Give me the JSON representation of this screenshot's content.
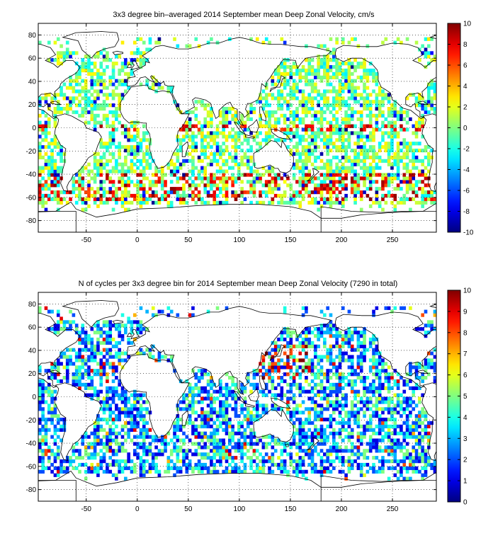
{
  "chart_data": [
    {
      "type": "heatmap",
      "title": "3x3 degree bin–averaged 2014 September mean Deep Zonal Velocity, cm/s",
      "xlabel": "",
      "ylabel": "",
      "xlim": [
        -97,
        293
      ],
      "ylim": [
        -90,
        90
      ],
      "x_ticks": [
        -50,
        0,
        50,
        100,
        150,
        200,
        250
      ],
      "y_ticks": [
        80,
        60,
        40,
        20,
        0,
        -20,
        -40,
        -60,
        -80
      ],
      "colorbar": {
        "min": -10,
        "max": 10,
        "ticks": [
          10,
          8,
          6,
          4,
          2,
          0,
          -2,
          -4,
          -6,
          -8,
          -10
        ]
      },
      "bin_size_deg": 3,
      "grid": true,
      "colormap": "jet"
    },
    {
      "type": "heatmap",
      "title": "N of cycles per 3x3 degree bin for 2014 September mean Deep Zonal Velocity (7290 in total)",
      "xlabel": "",
      "ylabel": "",
      "xlim": [
        -97,
        293
      ],
      "ylim": [
        -90,
        90
      ],
      "x_ticks": [
        -50,
        0,
        50,
        100,
        150,
        200,
        250
      ],
      "y_ticks": [
        80,
        60,
        40,
        20,
        0,
        -20,
        -40,
        -60,
        -80
      ],
      "colorbar": {
        "min": 0,
        "max": 10,
        "ticks": [
          10,
          9,
          8,
          7,
          6,
          5,
          4,
          3,
          2,
          1,
          0
        ]
      },
      "bin_size_deg": 3,
      "grid": true,
      "colormap": "jet"
    }
  ]
}
